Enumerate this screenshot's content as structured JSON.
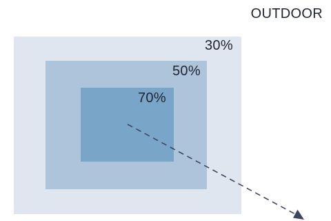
{
  "labels": {
    "outdoor": "OUTDOOR",
    "outer": "30%",
    "middle": "50%",
    "inner": "70%"
  },
  "colors": {
    "outer_zone": "#dfe6ef",
    "middle_zone": "#adc4da",
    "inner_zone": "#79a6c8",
    "arrow": "#3d4660",
    "text": "#1f2430"
  }
}
